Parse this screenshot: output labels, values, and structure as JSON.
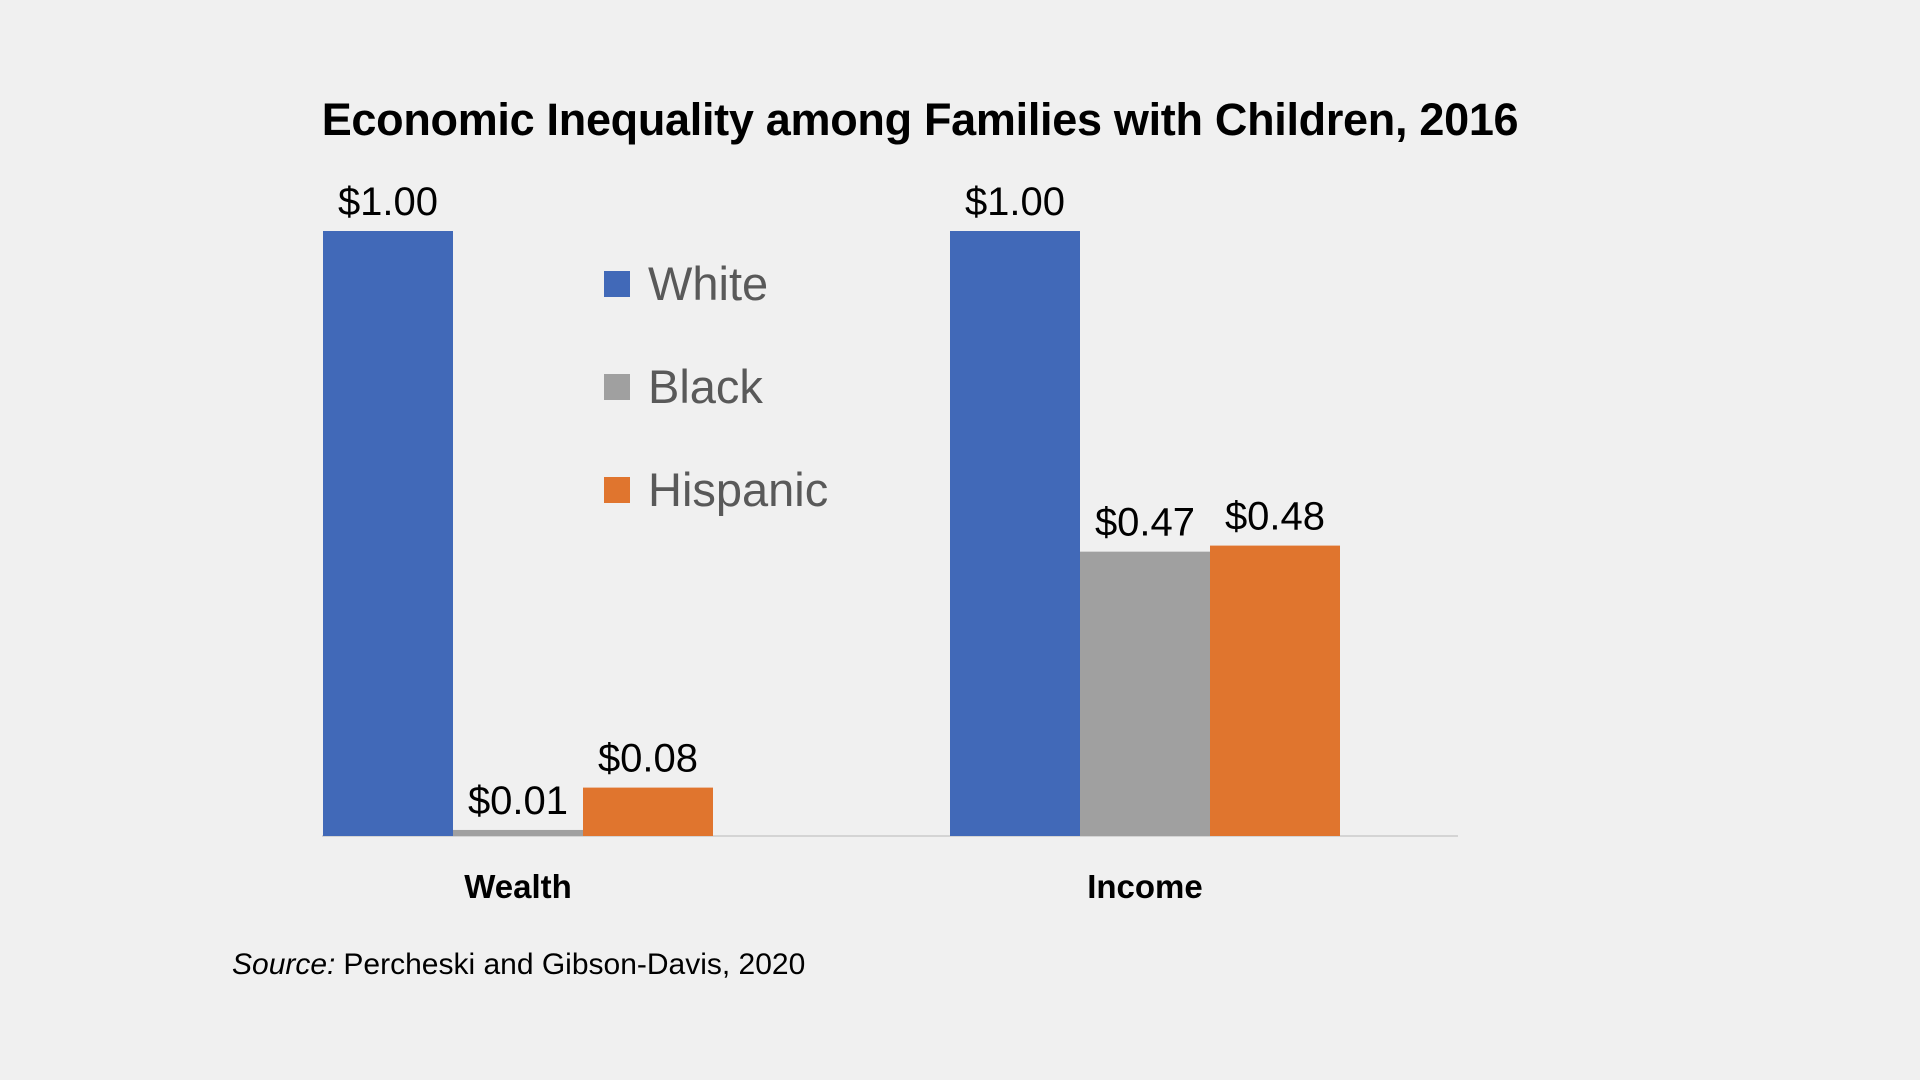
{
  "chart_data": {
    "type": "bar",
    "title": "Economic Inequality among Families with Children, 2016",
    "categories": [
      "Wealth",
      "Income"
    ],
    "series": [
      {
        "name": "White",
        "color": "#4169b8",
        "values": [
          1.0,
          1.0
        ],
        "labels": [
          "$1.00",
          "$1.00"
        ]
      },
      {
        "name": "Black",
        "color": "#a0a0a0",
        "values": [
          0.01,
          0.47
        ],
        "labels": [
          "$0.01",
          "$0.47"
        ]
      },
      {
        "name": "Hispanic",
        "color": "#e0752e",
        "values": [
          0.08,
          0.48
        ],
        "labels": [
          "$0.08",
          "$0.48"
        ]
      }
    ],
    "ylim": [
      0,
      1
    ],
    "legend_position": "top-center",
    "grid": false
  },
  "source": {
    "label": "Source:",
    "text": "Percheski and Gibson-Davis, 2020"
  }
}
